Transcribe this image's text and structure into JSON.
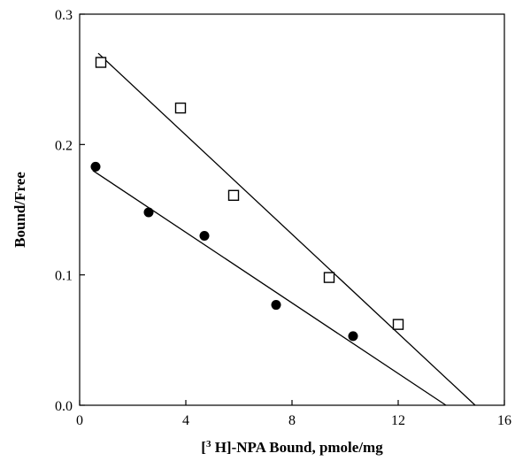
{
  "chart_data": {
    "type": "scatter",
    "xlabel": "[³ H]-NPA Bound, pmole/mg",
    "xlabel_parts": {
      "pre": "[",
      "sup": "3",
      "post": " H]-NPA Bound, pmole/mg"
    },
    "ylabel": "Bound/Free",
    "xlim": [
      0,
      16
    ],
    "ylim": [
      0,
      0.3
    ],
    "x_ticks": [
      0,
      4,
      8,
      12,
      16
    ],
    "x_tick_labels": [
      "0",
      "4",
      "8",
      "12",
      "16"
    ],
    "y_ticks": [
      0.0,
      0.1,
      0.2,
      0.3
    ],
    "y_tick_labels": [
      "0.0",
      "0.1",
      "0.2",
      "0.3"
    ],
    "grid": false,
    "series": [
      {
        "marker": "open-square",
        "points": [
          {
            "x": 0.8,
            "y": 0.263
          },
          {
            "x": 3.8,
            "y": 0.228
          },
          {
            "x": 5.8,
            "y": 0.161
          },
          {
            "x": 9.4,
            "y": 0.098
          },
          {
            "x": 12.0,
            "y": 0.062
          }
        ],
        "fit_line": [
          {
            "x": 0.7,
            "y": 0.27
          },
          {
            "x": 14.9,
            "y": 0.0
          }
        ]
      },
      {
        "marker": "filled-circle",
        "points": [
          {
            "x": 0.6,
            "y": 0.183
          },
          {
            "x": 2.6,
            "y": 0.148
          },
          {
            "x": 4.7,
            "y": 0.13
          },
          {
            "x": 7.4,
            "y": 0.077
          },
          {
            "x": 10.3,
            "y": 0.053
          }
        ],
        "fit_line": [
          {
            "x": 0.5,
            "y": 0.18
          },
          {
            "x": 13.8,
            "y": 0.0
          }
        ]
      }
    ]
  }
}
